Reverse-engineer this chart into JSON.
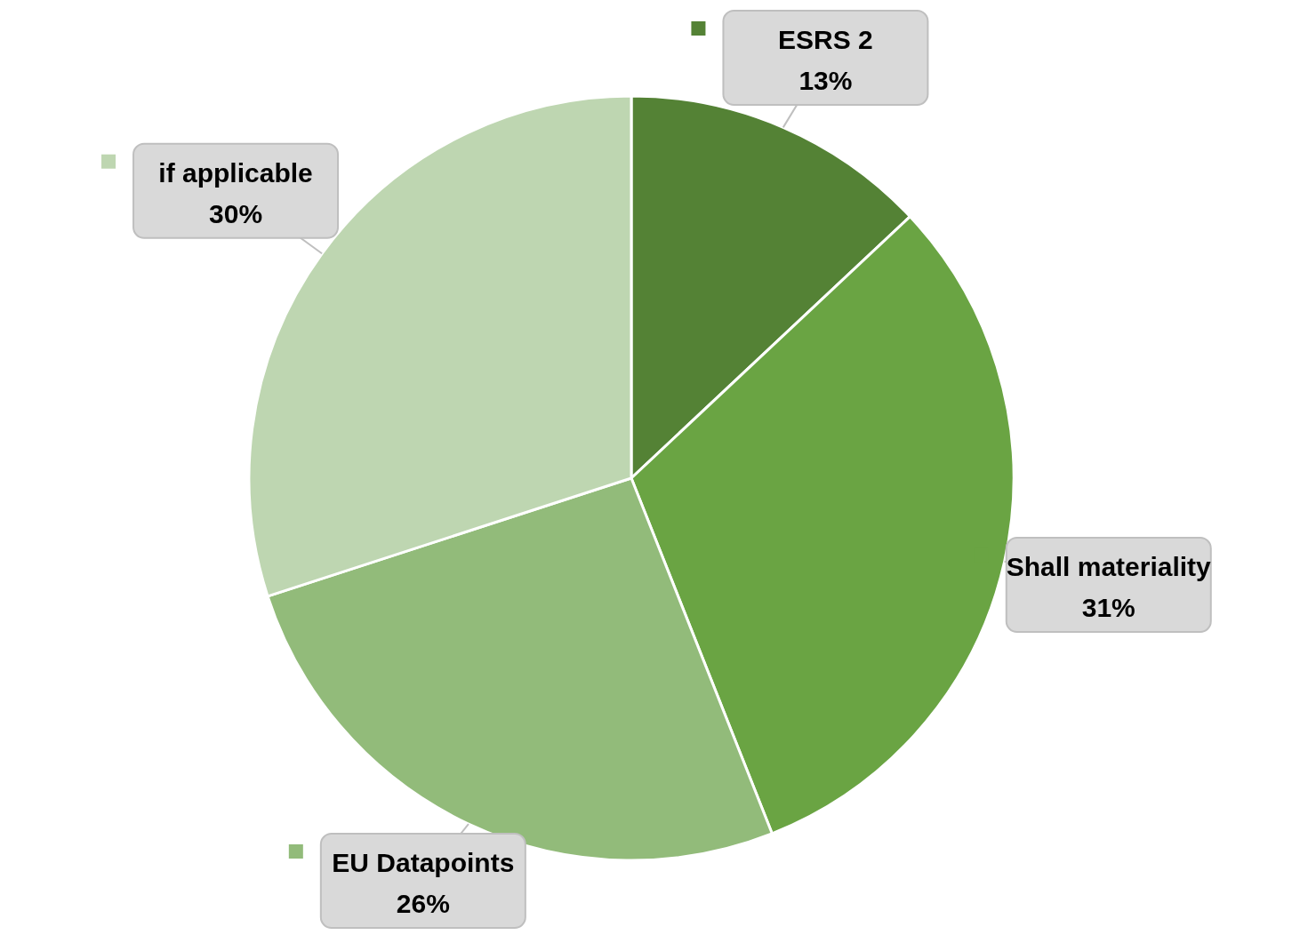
{
  "chart_data": {
    "type": "pie",
    "categories": [
      "ESRS 2",
      "Shall materiality",
      "EU Datapoints",
      "if applicable"
    ],
    "values": [
      13,
      31,
      26,
      30
    ],
    "value_labels": [
      "13%",
      "31%",
      "26%",
      "30%"
    ],
    "colors": [
      "#548235",
      "#6aa443",
      "#92bb7a",
      "#bed6b1"
    ],
    "legend": "left"
  }
}
